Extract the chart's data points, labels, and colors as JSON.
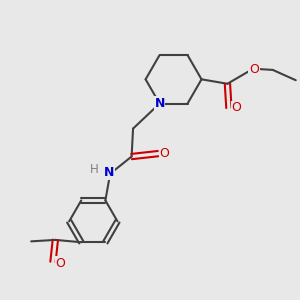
{
  "bg_color": "#e8e8e8",
  "line_color": "#404040",
  "N_color": "#0000cc",
  "O_color": "#cc0000",
  "H_color": "#808080",
  "line_width": 1.5,
  "fig_size": [
    3.0,
    3.0
  ],
  "dpi": 100,
  "xlim": [
    0,
    10
  ],
  "ylim": [
    0,
    10
  ]
}
